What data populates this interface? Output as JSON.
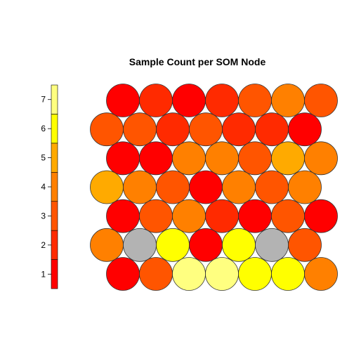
{
  "chart_data": {
    "type": "heatmap",
    "title": "Sample Count per SOM Node",
    "xlabel": "",
    "ylabel": "",
    "legend": {
      "placement": "left",
      "ticks": [
        "1",
        "2",
        "3",
        "4",
        "5",
        "6",
        "7"
      ],
      "colors": [
        "#FF0000",
        "#FF2A00",
        "#FF5500",
        "#FF8000",
        "#FFAA00",
        "#FFFF00",
        "#FFFF80"
      ]
    },
    "empty_color": "#B3B3B3",
    "grid": {
      "rows": 7,
      "cols": 7,
      "layout": "hexagonal"
    },
    "rows": [
      [
        1,
        2,
        1,
        2,
        3,
        4,
        3
      ],
      [
        3,
        3,
        2,
        3,
        2,
        2,
        1
      ],
      [
        1,
        1,
        4,
        4,
        3,
        5,
        4
      ],
      [
        5,
        4,
        3,
        1,
        4,
        3,
        4
      ],
      [
        1,
        3,
        4,
        2,
        1,
        3,
        1
      ],
      [
        4,
        null,
        6,
        1,
        6,
        null,
        3
      ],
      [
        1,
        3,
        7,
        7,
        6,
        6,
        4
      ]
    ]
  }
}
